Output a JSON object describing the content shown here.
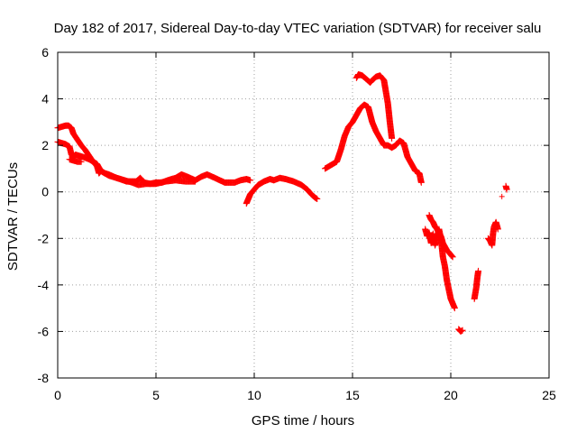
{
  "chart_data": {
    "type": "scatter",
    "title": "Day 182 of 2017, Sidereal Day-to-day VTEC variation (SDTVAR) for receiver salu",
    "xlabel": "GPS time / hours",
    "ylabel": "SDTVAR / TECUs",
    "xlim": [
      0,
      25
    ],
    "ylim": [
      -8,
      6
    ],
    "xticks": [
      0,
      5,
      10,
      15,
      20,
      25
    ],
    "yticks": [
      -8,
      -6,
      -4,
      -2,
      0,
      2,
      4,
      6
    ],
    "grid": true,
    "legend": "none",
    "marker": "+",
    "color": "#ff0000",
    "series": [
      {
        "name": "SDTVAR",
        "segments": [
          [
            [
              0.0,
              2.75
            ],
            [
              0.2,
              2.8
            ],
            [
              0.4,
              2.85
            ],
            [
              0.55,
              2.85
            ],
            [
              0.7,
              2.75
            ],
            [
              0.8,
              2.5
            ],
            [
              1.0,
              2.25
            ],
            [
              1.2,
              2.0
            ],
            [
              1.4,
              1.8
            ],
            [
              1.6,
              1.55
            ],
            [
              1.8,
              1.3
            ],
            [
              2.0,
              1.1
            ],
            [
              2.1,
              0.8
            ],
            [
              2.2,
              0.9
            ],
            [
              2.4,
              0.8
            ],
            [
              2.6,
              0.75
            ],
            [
              3.0,
              0.6
            ],
            [
              3.5,
              0.45
            ],
            [
              4.0,
              0.45
            ],
            [
              4.2,
              0.6
            ],
            [
              4.4,
              0.4
            ],
            [
              4.7,
              0.35
            ],
            [
              5.0,
              0.4
            ],
            [
              5.3,
              0.4
            ],
            [
              5.6,
              0.5
            ],
            [
              6.0,
              0.6
            ],
            [
              6.3,
              0.75
            ],
            [
              6.6,
              0.65
            ],
            [
              7.0,
              0.5
            ],
            [
              7.3,
              0.65
            ],
            [
              7.6,
              0.75
            ],
            [
              8.0,
              0.6
            ],
            [
              8.5,
              0.4
            ],
            [
              9.0,
              0.4
            ],
            [
              9.3,
              0.5
            ],
            [
              9.6,
              0.55
            ],
            [
              9.8,
              0.5
            ]
          ],
          [
            [
              0.0,
              2.15
            ],
            [
              0.2,
              2.1
            ],
            [
              0.4,
              2.05
            ],
            [
              0.6,
              1.95
            ],
            [
              0.7,
              1.6
            ],
            [
              0.8,
              1.5
            ],
            [
              0.9,
              1.6
            ],
            [
              1.1,
              1.55
            ],
            [
              1.3,
              1.5
            ],
            [
              1.6,
              1.4
            ],
            [
              2.0,
              1.2
            ],
            [
              2.2,
              0.9
            ],
            [
              2.6,
              0.7
            ],
            [
              3.2,
              0.55
            ],
            [
              3.8,
              0.4
            ],
            [
              4.1,
              0.3
            ],
            [
              4.5,
              0.35
            ],
            [
              5.0,
              0.35
            ],
            [
              5.5,
              0.45
            ],
            [
              6.0,
              0.5
            ],
            [
              6.5,
              0.45
            ],
            [
              7.0,
              0.45
            ]
          ],
          [
            [
              0.6,
              1.4
            ],
            [
              0.8,
              1.35
            ],
            [
              1.0,
              1.3
            ],
            [
              1.2,
              1.3
            ]
          ],
          [
            [
              9.6,
              -0.5
            ],
            [
              9.7,
              -0.3
            ],
            [
              9.8,
              -0.1
            ],
            [
              10.0,
              0.1
            ],
            [
              10.2,
              0.3
            ],
            [
              10.5,
              0.45
            ],
            [
              10.8,
              0.55
            ],
            [
              11.0,
              0.5
            ],
            [
              11.3,
              0.6
            ],
            [
              11.6,
              0.55
            ],
            [
              12.0,
              0.45
            ],
            [
              12.4,
              0.3
            ],
            [
              12.7,
              0.1
            ],
            [
              12.9,
              -0.1
            ],
            [
              13.1,
              -0.25
            ],
            [
              13.2,
              -0.3
            ]
          ],
          [
            [
              13.6,
              1.0
            ],
            [
              13.8,
              1.1
            ],
            [
              14.0,
              1.2
            ],
            [
              14.2,
              1.3
            ],
            [
              14.4,
              1.8
            ],
            [
              14.6,
              2.4
            ],
            [
              14.8,
              2.8
            ],
            [
              15.0,
              3.0
            ],
            [
              15.2,
              3.3
            ],
            [
              15.4,
              3.6
            ],
            [
              15.6,
              3.75
            ],
            [
              15.8,
              3.65
            ],
            [
              16.0,
              3.0
            ],
            [
              16.2,
              2.6
            ],
            [
              16.4,
              2.3
            ],
            [
              16.6,
              2.0
            ],
            [
              16.8,
              2.0
            ],
            [
              17.0,
              1.9
            ],
            [
              17.2,
              2.0
            ],
            [
              17.4,
              2.2
            ],
            [
              17.6,
              2.1
            ],
            [
              17.8,
              1.5
            ],
            [
              18.0,
              1.2
            ],
            [
              18.2,
              0.9
            ],
            [
              18.4,
              0.8
            ],
            [
              18.5,
              0.4
            ]
          ],
          [
            [
              15.2,
              4.9
            ],
            [
              15.3,
              5.05
            ],
            [
              15.5,
              5.0
            ],
            [
              15.7,
              4.85
            ],
            [
              15.9,
              4.7
            ],
            [
              16.0,
              4.8
            ],
            [
              16.2,
              4.95
            ],
            [
              16.4,
              5.0
            ],
            [
              16.6,
              4.8
            ],
            [
              16.7,
              4.3
            ],
            [
              16.8,
              3.8
            ],
            [
              16.9,
              3.0
            ],
            [
              17.0,
              2.3
            ]
          ],
          [
            [
              18.7,
              -1.6
            ],
            [
              18.8,
              -1.9
            ],
            [
              18.9,
              -1.75
            ],
            [
              19.0,
              -2.2
            ],
            [
              19.1,
              -1.8
            ],
            [
              19.2,
              -2.3
            ],
            [
              19.4,
              -1.6
            ],
            [
              19.5,
              -2.0
            ],
            [
              19.6,
              -2.8
            ],
            [
              19.7,
              -3.2
            ],
            [
              19.8,
              -3.8
            ],
            [
              19.9,
              -4.2
            ],
            [
              20.0,
              -4.6
            ],
            [
              20.1,
              -4.8
            ],
            [
              20.2,
              -5.0
            ]
          ],
          [
            [
              18.9,
              -1.0
            ],
            [
              19.0,
              -1.2
            ],
            [
              19.1,
              -1.3
            ],
            [
              19.2,
              -1.5
            ],
            [
              19.3,
              -1.6
            ],
            [
              19.4,
              -1.8
            ],
            [
              19.5,
              -1.9
            ],
            [
              19.6,
              -2.2
            ],
            [
              19.7,
              -2.35
            ],
            [
              19.8,
              -2.5
            ],
            [
              19.9,
              -2.6
            ],
            [
              20.0,
              -2.7
            ],
            [
              20.1,
              -2.8
            ]
          ],
          [
            [
              20.4,
              -5.9
            ],
            [
              20.5,
              -6.0
            ],
            [
              20.6,
              -5.95
            ]
          ],
          [
            [
              21.2,
              -4.6
            ],
            [
              21.3,
              -4.1
            ],
            [
              21.35,
              -3.7
            ],
            [
              21.4,
              -3.4
            ]
          ],
          [
            [
              21.9,
              -2.0
            ],
            [
              22.0,
              -2.1
            ],
            [
              22.1,
              -2.3
            ],
            [
              22.15,
              -1.8
            ],
            [
              22.2,
              -1.5
            ],
            [
              22.3,
              -1.3
            ],
            [
              22.4,
              -1.6
            ]
          ],
          [
            [
              22.8,
              0.25
            ],
            [
              22.85,
              0.1
            ]
          ]
        ],
        "sparse": [
          [
            22.6,
            -0.2
          ]
        ]
      }
    ]
  }
}
